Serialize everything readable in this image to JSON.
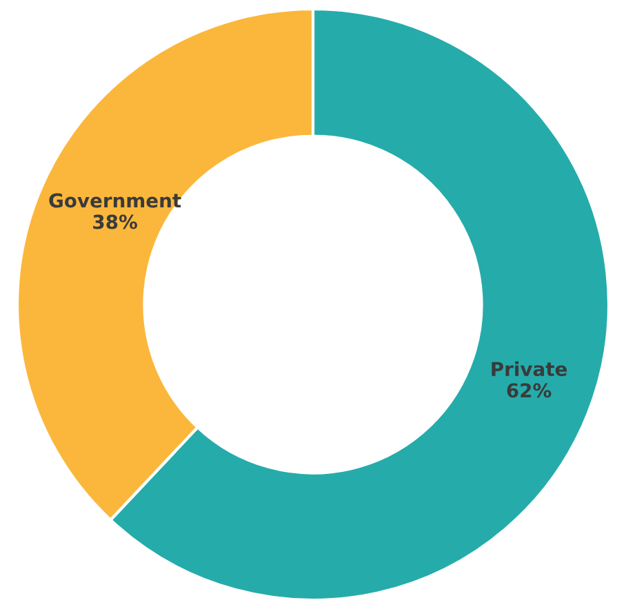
{
  "chart_data": {
    "type": "donut",
    "categories": [
      "Private",
      "Government"
    ],
    "values": [
      62,
      38
    ],
    "colors": [
      "#26abab",
      "#fbb73c"
    ],
    "value_labels": [
      "62%",
      "38%"
    ]
  }
}
